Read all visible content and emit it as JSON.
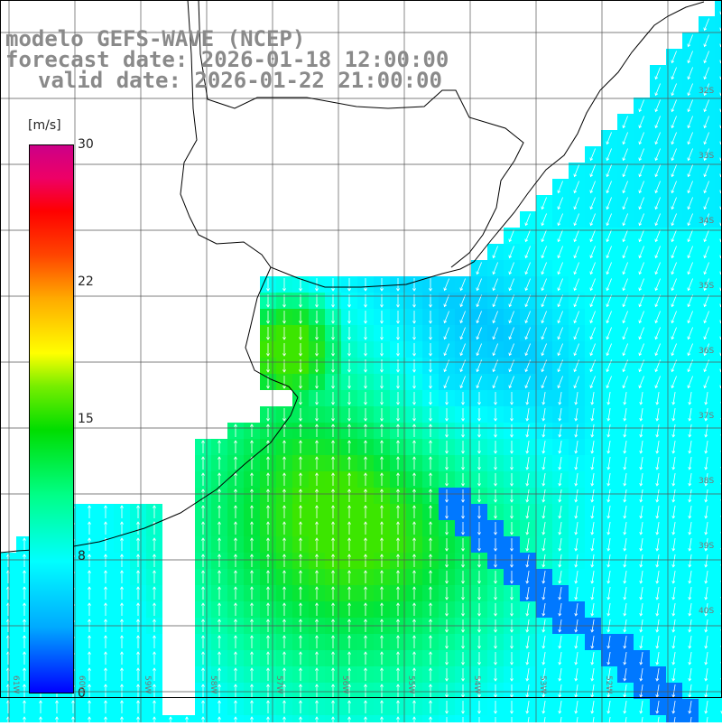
{
  "title": {
    "line1": "modelo GEFS-WAVE (NCEP)",
    "line2": "forecast date: 2026-01-18 12:00:00",
    "line3": "valid date: 2026-01-22 21:00:00"
  },
  "colorbar": {
    "unit": "[m/s]",
    "ticks": [
      "30",
      "22",
      "15",
      "8",
      "0"
    ],
    "colors": [
      "#0000ff",
      "#00aaff",
      "#00ffff",
      "#00ff88",
      "#00dd00",
      "#77ee00",
      "#ffff00",
      "#ffaa00",
      "#ff4400",
      "#ff0000",
      "#ee0066",
      "#cc0088"
    ]
  },
  "lon_labels": [
    "61W",
    "60W",
    "59W",
    "58W",
    "57W",
    "56W",
    "55W",
    "54W",
    "53W",
    "52W"
  ],
  "lat_labels": [
    "32S",
    "33S",
    "34S",
    "35S",
    "36S",
    "37S",
    "38S",
    "39S",
    "40S"
  ],
  "legend_words": {
    "land_color": "#ffffff",
    "grid_color": "#555555"
  }
}
